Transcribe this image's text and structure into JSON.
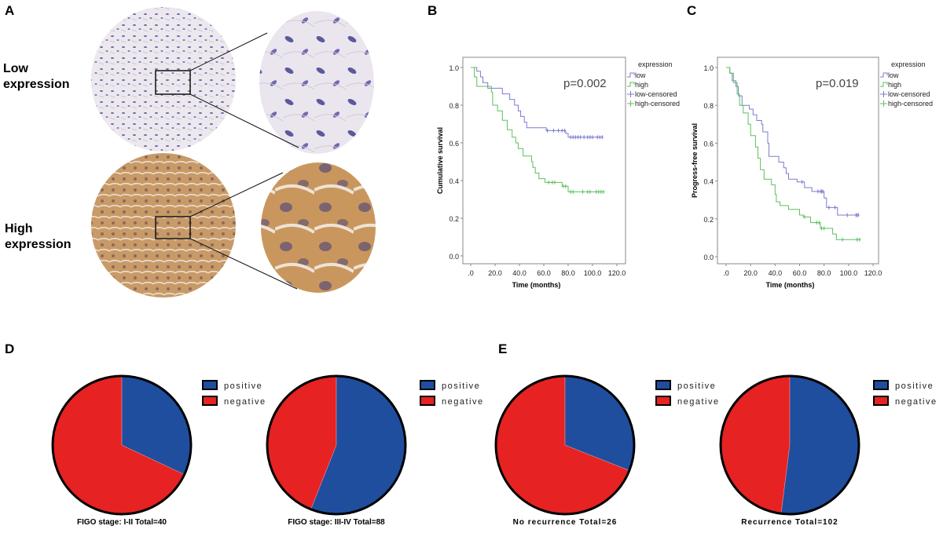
{
  "panels": {
    "A": {
      "letter": "A",
      "low_label_1": "Low",
      "low_label_2": "expression",
      "high_label_1": "High",
      "high_label_2": "expression"
    },
    "B": {
      "letter": "B"
    },
    "C": {
      "letter": "C"
    },
    "D": {
      "letter": "D"
    },
    "E": {
      "letter": "E"
    }
  },
  "colors": {
    "low": "#7b7bd0",
    "high": "#5fbf5f",
    "positive": "#1f4e9e",
    "negative": "#e62222",
    "low_stain": "#5a5aa0",
    "high_stain": "#b07a3a"
  },
  "chart_data": [
    {
      "type": "line",
      "subtype": "kaplan-meier",
      "xlabel": "Time (months)",
      "ylabel": "Cumulative survival",
      "xticks": [
        ".0",
        "20.0",
        "40.0",
        "60.0",
        "80.0",
        "100.0",
        "120.0"
      ],
      "yticks": [
        "0.0",
        "0.2",
        "0.4",
        "0.6",
        "0.8",
        "1.0"
      ],
      "xlim": [
        0,
        120
      ],
      "ylim": [
        0,
        1
      ],
      "annotation": "p=0.002",
      "legend_title": "expression",
      "legend": [
        "low",
        "high",
        "low-censored",
        "high-censored"
      ],
      "legend_placement": "right",
      "series": [
        {
          "name": "low",
          "steps": [
            [
              0,
              1
            ],
            [
              5,
              0.98
            ],
            [
              8,
              0.95
            ],
            [
              10,
              0.92
            ],
            [
              14,
              0.89
            ],
            [
              26,
              0.86
            ],
            [
              32,
              0.83
            ],
            [
              36,
              0.8
            ],
            [
              39,
              0.77
            ],
            [
              41,
              0.74
            ],
            [
              44,
              0.71
            ],
            [
              46,
              0.68
            ],
            [
              62,
              0.665
            ],
            [
              78,
              0.65
            ],
            [
              80,
              0.63
            ],
            [
              108,
              0.63
            ]
          ],
          "censored": [
            63,
            68,
            72,
            75,
            77,
            82,
            84,
            86,
            88,
            90,
            93,
            96,
            98,
            100,
            104,
            106,
            108
          ]
        },
        {
          "name": "high",
          "steps": [
            [
              0,
              1
            ],
            [
              3,
              0.95
            ],
            [
              5,
              0.9
            ],
            [
              17,
              0.87
            ],
            [
              18,
              0.8
            ],
            [
              22,
              0.77
            ],
            [
              26,
              0.72
            ],
            [
              30,
              0.67
            ],
            [
              34,
              0.63
            ],
            [
              37,
              0.6
            ],
            [
              39,
              0.57
            ],
            [
              43,
              0.53
            ],
            [
              50,
              0.5
            ],
            [
              51,
              0.47
            ],
            [
              53,
              0.44
            ],
            [
              56,
              0.41
            ],
            [
              61,
              0.39
            ],
            [
              75,
              0.37
            ],
            [
              80,
              0.34
            ],
            [
              109,
              0.34
            ]
          ],
          "censored": [
            64,
            67,
            69,
            76,
            78,
            82,
            84,
            92,
            96,
            98,
            103,
            105,
            107,
            109
          ]
        }
      ]
    },
    {
      "type": "line",
      "subtype": "kaplan-meier",
      "xlabel": "Time (months)",
      "ylabel": "Progress-free survival",
      "xticks": [
        ".0",
        "20.0",
        "40.0",
        "60.0",
        "80.0",
        "100.0",
        "120.0"
      ],
      "yticks": [
        "0.0",
        "0.2",
        "0.4",
        "0.6",
        "0.8",
        "1.0"
      ],
      "xlim": [
        0,
        120
      ],
      "ylim": [
        0,
        1
      ],
      "annotation": "p=0.019",
      "legend_title": "expression",
      "legend": [
        "low",
        "high",
        "low-censored",
        "high-censored"
      ],
      "legend_placement": "right",
      "series": [
        {
          "name": "low",
          "steps": [
            [
              0,
              1
            ],
            [
              3,
              0.97
            ],
            [
              5,
              0.93
            ],
            [
              8,
              0.9
            ],
            [
              10,
              0.85
            ],
            [
              13,
              0.8
            ],
            [
              19,
              0.78
            ],
            [
              22,
              0.75
            ],
            [
              25,
              0.72
            ],
            [
              29,
              0.7
            ],
            [
              30,
              0.66
            ],
            [
              34,
              0.6
            ],
            [
              35,
              0.53
            ],
            [
              43,
              0.5
            ],
            [
              47,
              0.47
            ],
            [
              49,
              0.44
            ],
            [
              51,
              0.41
            ],
            [
              58,
              0.395
            ],
            [
              64,
              0.365
            ],
            [
              70,
              0.345
            ],
            [
              80,
              0.31
            ],
            [
              82,
              0.26
            ],
            [
              91,
              0.22
            ],
            [
              108,
              0.22
            ]
          ],
          "censored": [
            62,
            75,
            77,
            78,
            79,
            84,
            89,
            99,
            106,
            107,
            108
          ]
        },
        {
          "name": "high",
          "steps": [
            [
              0,
              1
            ],
            [
              3,
              0.97
            ],
            [
              6,
              0.92
            ],
            [
              9,
              0.86
            ],
            [
              11,
              0.8
            ],
            [
              14,
              0.76
            ],
            [
              18,
              0.7
            ],
            [
              20,
              0.64
            ],
            [
              24,
              0.58
            ],
            [
              26,
              0.52
            ],
            [
              28,
              0.46
            ],
            [
              31,
              0.41
            ],
            [
              37,
              0.38
            ],
            [
              40,
              0.33
            ],
            [
              41,
              0.29
            ],
            [
              44,
              0.27
            ],
            [
              51,
              0.25
            ],
            [
              60,
              0.22
            ],
            [
              63,
              0.21
            ],
            [
              69,
              0.18
            ],
            [
              77,
              0.15
            ],
            [
              87,
              0.12
            ],
            [
              90,
              0.09
            ],
            [
              109,
              0.09
            ]
          ],
          "censored": [
            64,
            74,
            76,
            78,
            80,
            95,
            107,
            109
          ]
        }
      ]
    },
    {
      "type": "pie",
      "caption": "FIGO stage: I-II Total=40",
      "labels": [
        "positive",
        "negative"
      ],
      "values": [
        0.32,
        0.68
      ]
    },
    {
      "type": "pie",
      "caption": "FIGO stage: III-IV Total=88",
      "labels": [
        "positive",
        "negative"
      ],
      "values": [
        0.56,
        0.44
      ]
    },
    {
      "type": "pie",
      "caption": "No recurrence Total=26",
      "labels": [
        "positive",
        "negative"
      ],
      "values": [
        0.31,
        0.69
      ]
    },
    {
      "type": "pie",
      "caption": "Recurrence Total=102",
      "labels": [
        "positive",
        "negative"
      ],
      "values": [
        0.52,
        0.48
      ]
    }
  ]
}
